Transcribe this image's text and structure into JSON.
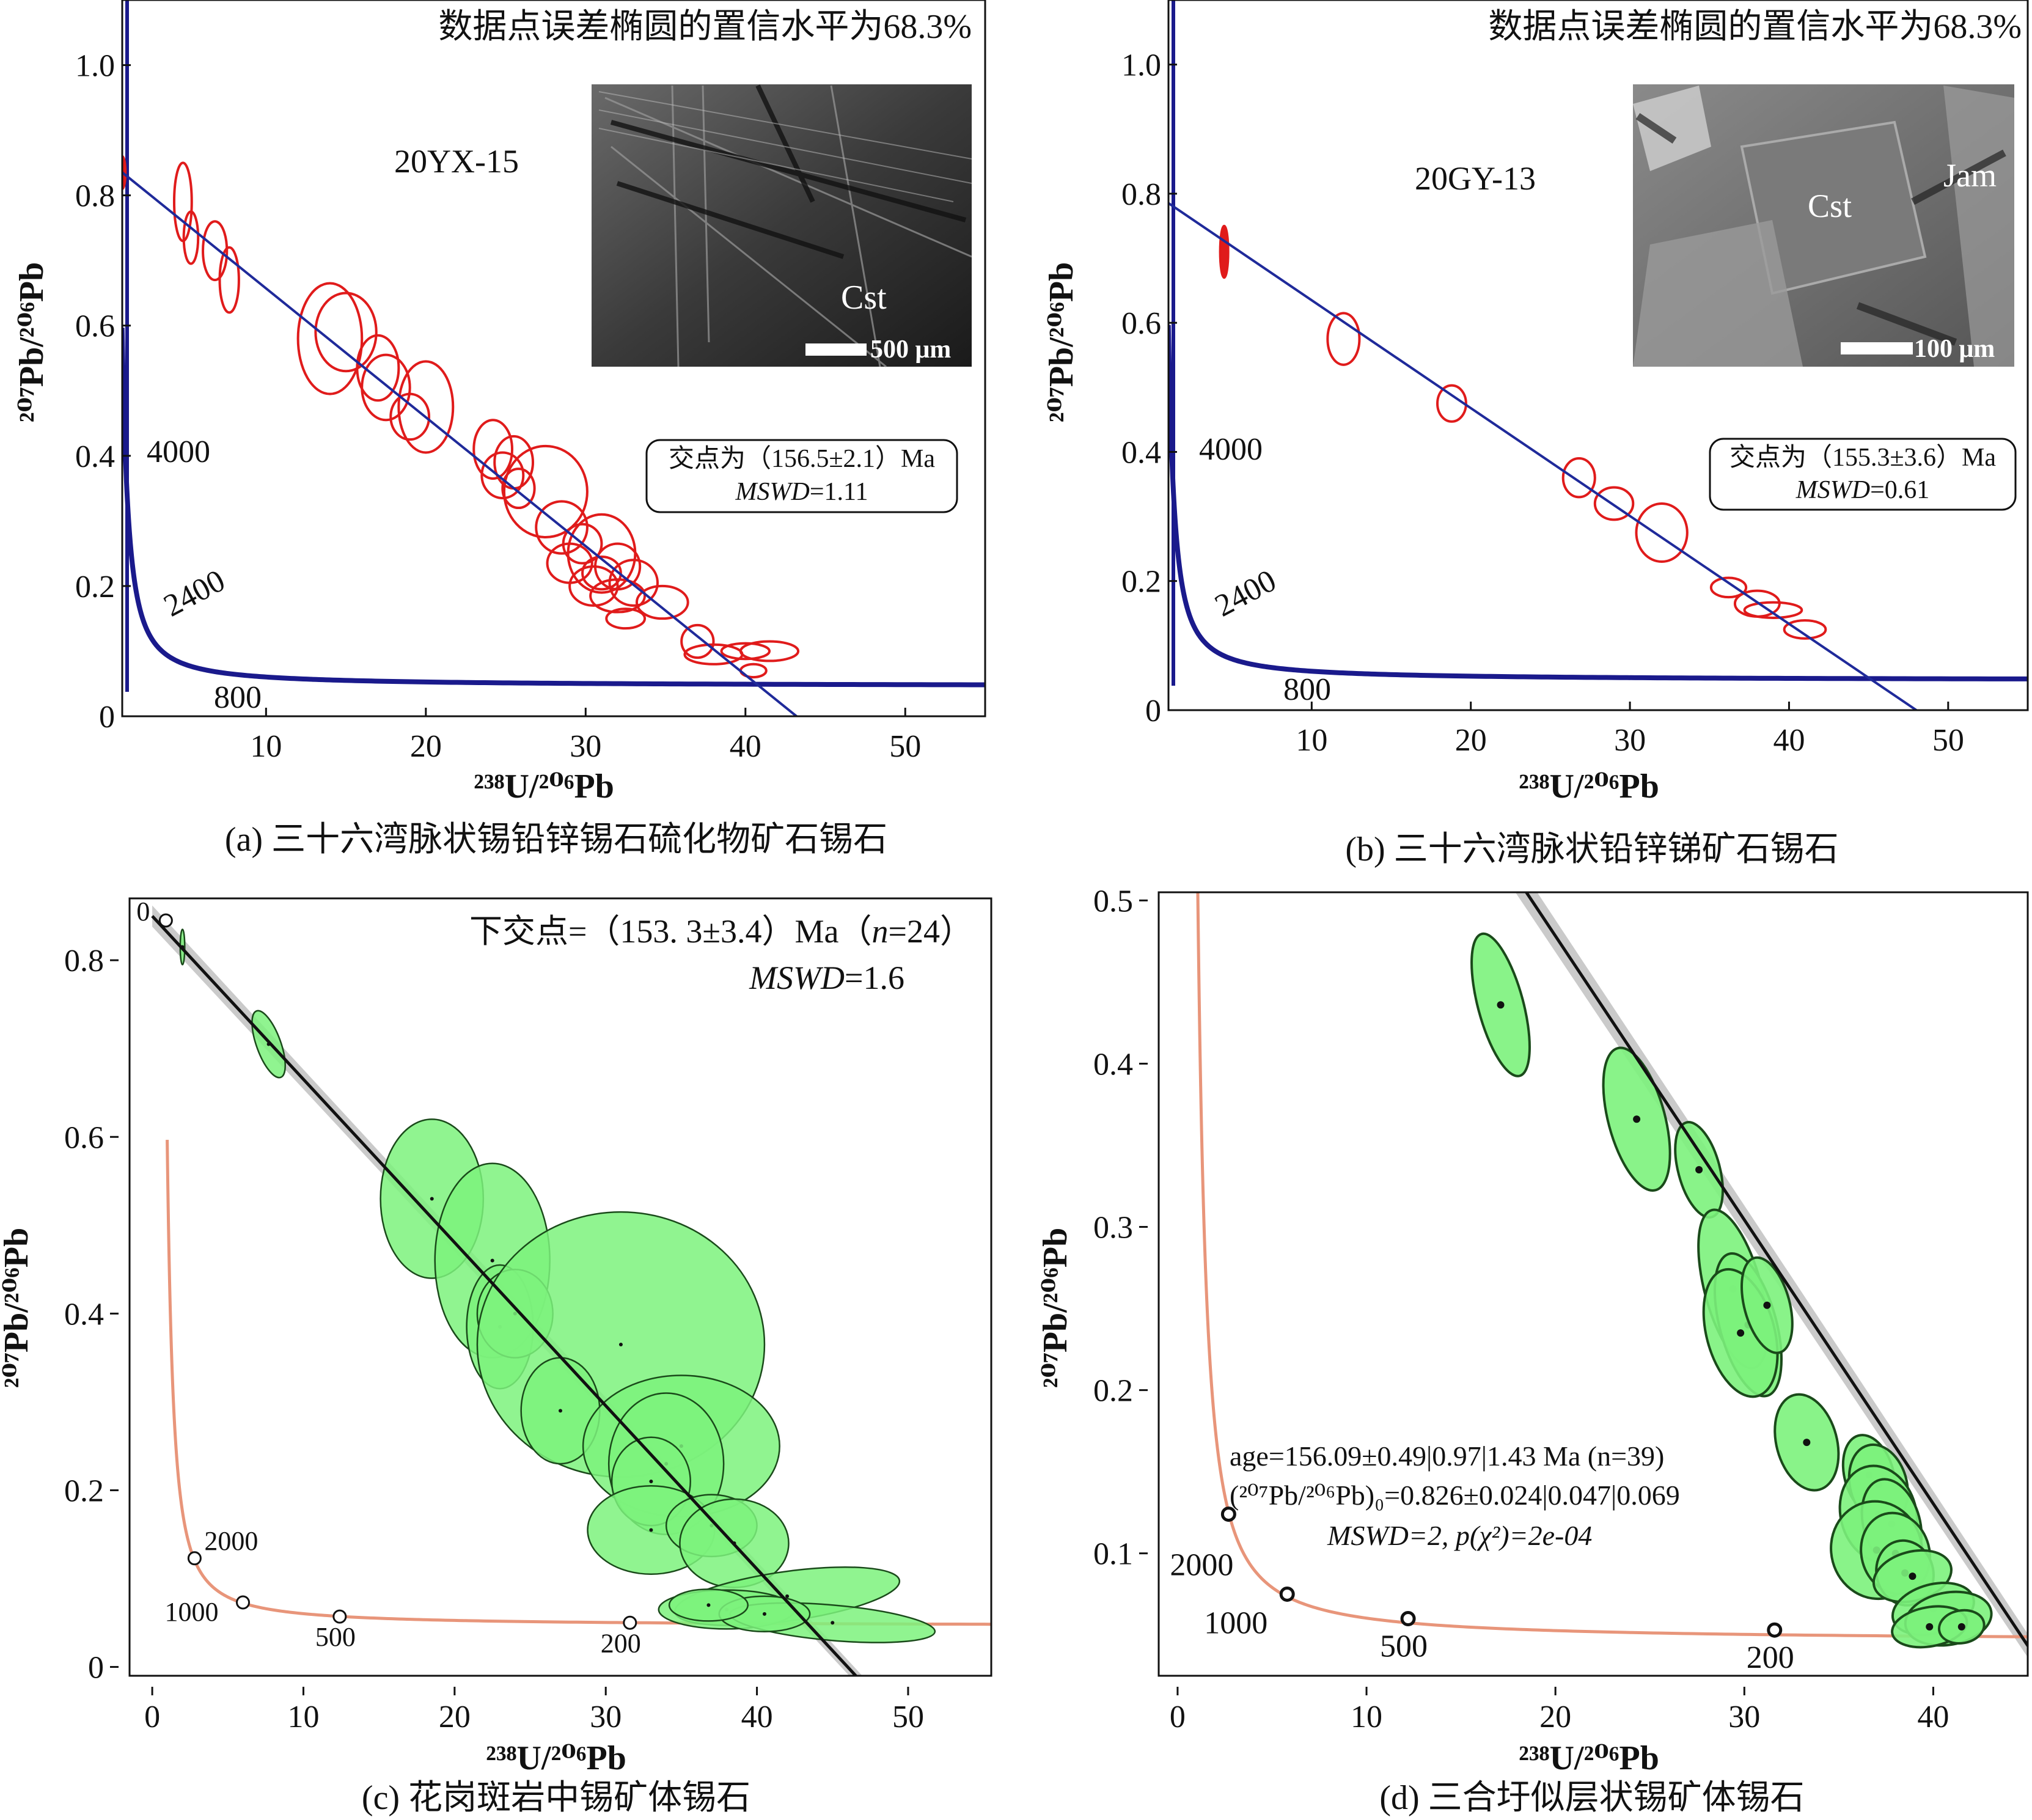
{
  "panels": {
    "a": {
      "caption": "(a) 三十六湾脉状锡铅锌锡石硫化物矿石锡石",
      "confidence": "数据点误差椭圆的置信水平为68.3%",
      "sample": "20YX-15",
      "result_line1": "交点为（156.5±2.1）Ma",
      "result_line2_italic": "MSWD",
      "result_line2_value": "=1.11",
      "inset_label": "Cst",
      "scale_label": "500 μm",
      "concordia_labels": [
        "4000",
        "2400",
        "800"
      ]
    },
    "b": {
      "caption": "(b) 三十六湾脉状铅锌锑矿石锡石",
      "confidence": "数据点误差椭圆的置信水平为68.3%",
      "sample": "20GY-13",
      "result_line1": "交点为（155.3±3.6）Ma",
      "result_line2_italic": "MSWD",
      "result_line2_value": "=0.61",
      "inset_label": "Cst",
      "inset_label2": "Jam",
      "scale_label": "100 μm",
      "concordia_labels": [
        "4000",
        "2400",
        "800"
      ]
    },
    "c": {
      "caption": "(c) 花岗斑岩中锡矿体锡石",
      "result_line1_pre": "下交点=（153. 3±3.4）Ma（",
      "result_line1_n": "n",
      "result_line1_post": "=24）",
      "result_line2_italic": "MSWD",
      "result_line2_value": "=1.6",
      "concordia_labels": [
        "0",
        "2000",
        "1000",
        "500",
        "200"
      ]
    },
    "d": {
      "caption": "(d) 三合圩似层状锡矿体锡石",
      "result_line1": "age=156.09±0.49|0.97|1.43 Ma (n=39)",
      "result_line2": "(²⁰⁷Pb/²⁰⁶Pb)₀=0.826±0.024|0.047|0.069",
      "result_line3": "MSWD=2, p(χ²)=2e-04",
      "concordia_labels": [
        "2000",
        "1000",
        "500",
        "200"
      ]
    }
  },
  "axis_labels": {
    "x": "²³⁸U/²⁰⁶Pb",
    "y": "²⁰⁷Pb/²⁰⁶Pb"
  },
  "colors": {
    "concordia_ab": "#1a1a8c",
    "discordia_ab": "#1f2a9a",
    "ellipse_ab": "#e01b1b",
    "concordia_cd": "#e8957a",
    "ellipse_fill_cd": "#7cf27c",
    "ellipse_stroke_cd": "#1a4a1a",
    "discordia_cd": "#111111"
  },
  "chart_data": [
    {
      "panel": "a",
      "type": "scatter",
      "xlim": [
        1,
        55
      ],
      "ylim": [
        0,
        1.1
      ],
      "xticks": [
        10,
        20,
        30,
        40,
        50
      ],
      "yticks": [
        0,
        0.2,
        0.4,
        0.6,
        0.8,
        1.0
      ],
      "intercept_age_Ma": 156.5,
      "discordia": {
        "y0": 0.855,
        "x_intercept": 43.2
      },
      "ellipses": [
        {
          "x": 1.0,
          "y": 0.835,
          "rx": 0.2,
          "ry": 0.025
        },
        {
          "x": 4.8,
          "y": 0.79,
          "rx": 0.55,
          "ry": 0.06
        },
        {
          "x": 5.3,
          "y": 0.735,
          "rx": 0.45,
          "ry": 0.04
        },
        {
          "x": 6.8,
          "y": 0.715,
          "rx": 0.75,
          "ry": 0.045
        },
        {
          "x": 7.7,
          "y": 0.67,
          "rx": 0.6,
          "ry": 0.05
        },
        {
          "x": 15.0,
          "y": 0.59,
          "rx": 1.9,
          "ry": 0.06
        },
        {
          "x": 14.0,
          "y": 0.58,
          "rx": 2.0,
          "ry": 0.085
        },
        {
          "x": 17.0,
          "y": 0.535,
          "rx": 1.3,
          "ry": 0.05
        },
        {
          "x": 17.5,
          "y": 0.505,
          "rx": 1.5,
          "ry": 0.05
        },
        {
          "x": 20.0,
          "y": 0.475,
          "rx": 1.7,
          "ry": 0.07
        },
        {
          "x": 19.0,
          "y": 0.46,
          "rx": 1.2,
          "ry": 0.035
        },
        {
          "x": 24.2,
          "y": 0.41,
          "rx": 1.2,
          "ry": 0.045
        },
        {
          "x": 25.5,
          "y": 0.39,
          "rx": 1.2,
          "ry": 0.04
        },
        {
          "x": 24.8,
          "y": 0.37,
          "rx": 1.3,
          "ry": 0.035
        },
        {
          "x": 27.5,
          "y": 0.345,
          "rx": 2.6,
          "ry": 0.07
        },
        {
          "x": 25.8,
          "y": 0.35,
          "rx": 1.0,
          "ry": 0.03
        },
        {
          "x": 28.5,
          "y": 0.29,
          "rx": 1.6,
          "ry": 0.04
        },
        {
          "x": 29.8,
          "y": 0.265,
          "rx": 1.2,
          "ry": 0.03
        },
        {
          "x": 31.0,
          "y": 0.25,
          "rx": 2.1,
          "ry": 0.06
        },
        {
          "x": 29.0,
          "y": 0.235,
          "rx": 1.4,
          "ry": 0.03
        },
        {
          "x": 32.0,
          "y": 0.23,
          "rx": 1.4,
          "ry": 0.035
        },
        {
          "x": 31.0,
          "y": 0.22,
          "rx": 1.2,
          "ry": 0.025
        },
        {
          "x": 33.0,
          "y": 0.205,
          "rx": 1.5,
          "ry": 0.035
        },
        {
          "x": 30.5,
          "y": 0.2,
          "rx": 1.5,
          "ry": 0.03
        },
        {
          "x": 32.0,
          "y": 0.185,
          "rx": 1.7,
          "ry": 0.025
        },
        {
          "x": 34.8,
          "y": 0.175,
          "rx": 1.6,
          "ry": 0.025
        },
        {
          "x": 32.5,
          "y": 0.15,
          "rx": 1.2,
          "ry": 0.015
        },
        {
          "x": 37.0,
          "y": 0.115,
          "rx": 1.0,
          "ry": 0.025
        },
        {
          "x": 38.0,
          "y": 0.095,
          "rx": 1.8,
          "ry": 0.015
        },
        {
          "x": 40.0,
          "y": 0.1,
          "rx": 1.5,
          "ry": 0.012
        },
        {
          "x": 41.5,
          "y": 0.1,
          "rx": 1.8,
          "ry": 0.015
        },
        {
          "x": 40.5,
          "y": 0.07,
          "rx": 0.8,
          "ry": 0.01
        }
      ]
    },
    {
      "panel": "b",
      "type": "scatter",
      "xlim": [
        1,
        55
      ],
      "ylim": [
        0,
        1.1
      ],
      "xticks": [
        10,
        20,
        30,
        40,
        50
      ],
      "yticks": [
        0,
        0.2,
        0.4,
        0.6,
        0.8,
        1.0
      ],
      "intercept_age_Ma": 155.3,
      "discordia": {
        "y0": 0.802,
        "x_intercept": 48.0
      },
      "ellipses": [
        {
          "x": 4.5,
          "y": 0.71,
          "rx": 0.25,
          "ry": 0.04
        },
        {
          "x": 12.0,
          "y": 0.575,
          "rx": 1.0,
          "ry": 0.04
        },
        {
          "x": 18.8,
          "y": 0.475,
          "rx": 0.9,
          "ry": 0.028
        },
        {
          "x": 26.8,
          "y": 0.36,
          "rx": 1.0,
          "ry": 0.03
        },
        {
          "x": 29.0,
          "y": 0.32,
          "rx": 1.2,
          "ry": 0.025
        },
        {
          "x": 32.0,
          "y": 0.275,
          "rx": 1.6,
          "ry": 0.045
        },
        {
          "x": 36.2,
          "y": 0.19,
          "rx": 1.1,
          "ry": 0.015
        },
        {
          "x": 38.0,
          "y": 0.165,
          "rx": 1.4,
          "ry": 0.02
        },
        {
          "x": 39.0,
          "y": 0.155,
          "rx": 1.8,
          "ry": 0.012
        },
        {
          "x": 41.0,
          "y": 0.125,
          "rx": 1.3,
          "ry": 0.014
        }
      ]
    },
    {
      "panel": "c",
      "type": "scatter",
      "xlim": [
        -1.5,
        55.5
      ],
      "ylim": [
        -0.01,
        0.87
      ],
      "xticks": [
        0,
        10,
        20,
        30,
        40,
        50
      ],
      "yticks": [
        0,
        0.2,
        0.4,
        0.6,
        0.8
      ],
      "n": 24,
      "intercept_age_Ma": 153.3,
      "discordia": {
        "y0": 0.85,
        "x_intercept": 46.0
      },
      "concordia_points": [
        {
          "label": "0",
          "x": 0.9,
          "y": 0.845
        },
        {
          "label": "2000",
          "x": 2.8,
          "y": 0.123
        },
        {
          "label": "1000",
          "x": 6.0,
          "y": 0.073
        },
        {
          "label": "500",
          "x": 12.4,
          "y": 0.057
        },
        {
          "label": "200",
          "x": 31.6,
          "y": 0.05
        }
      ],
      "ellipses": [
        {
          "x": 2.0,
          "y": 0.815,
          "rx": 0.15,
          "ry": 0.02,
          "rot": 0
        },
        {
          "x": 7.7,
          "y": 0.705,
          "rx": 0.8,
          "ry": 0.04,
          "rot": -20
        },
        {
          "x": 18.5,
          "y": 0.53,
          "rx": 3.4,
          "ry": 0.09,
          "rot": 0
        },
        {
          "x": 22.5,
          "y": 0.46,
          "rx": 3.8,
          "ry": 0.11,
          "rot": 0
        },
        {
          "x": 23.0,
          "y": 0.385,
          "rx": 2.2,
          "ry": 0.07,
          "rot": 0
        },
        {
          "x": 24.0,
          "y": 0.4,
          "rx": 2.5,
          "ry": 0.05,
          "rot": 0
        },
        {
          "x": 31.0,
          "y": 0.365,
          "rx": 9.5,
          "ry": 0.15,
          "rot": 0
        },
        {
          "x": 27.0,
          "y": 0.29,
          "rx": 2.6,
          "ry": 0.06,
          "rot": 0
        },
        {
          "x": 35.0,
          "y": 0.25,
          "rx": 6.5,
          "ry": 0.08,
          "rot": 0
        },
        {
          "x": 34.0,
          "y": 0.23,
          "rx": 3.8,
          "ry": 0.08,
          "rot": 0
        },
        {
          "x": 33.0,
          "y": 0.21,
          "rx": 2.6,
          "ry": 0.05,
          "rot": 0
        },
        {
          "x": 33.0,
          "y": 0.155,
          "rx": 4.2,
          "ry": 0.05,
          "rot": 0
        },
        {
          "x": 37.0,
          "y": 0.16,
          "rx": 3.0,
          "ry": 0.035,
          "rot": 0
        },
        {
          "x": 38.5,
          "y": 0.14,
          "rx": 3.6,
          "ry": 0.05,
          "rot": 0
        },
        {
          "x": 42.0,
          "y": 0.08,
          "rx": 7.5,
          "ry": 0.028,
          "rot": -8
        },
        {
          "x": 38.0,
          "y": 0.065,
          "rx": 4.5,
          "ry": 0.022,
          "rot": 0
        },
        {
          "x": 45.0,
          "y": 0.05,
          "rx": 6.8,
          "ry": 0.02,
          "rot": 5
        },
        {
          "x": 40.5,
          "y": 0.06,
          "rx": 3.0,
          "ry": 0.02,
          "rot": 0
        },
        {
          "x": 36.8,
          "y": 0.07,
          "rx": 2.6,
          "ry": 0.018,
          "rot": 0
        }
      ]
    },
    {
      "panel": "d",
      "type": "scatter",
      "xlim": [
        -1,
        45
      ],
      "ylim": [
        0.025,
        0.505
      ],
      "xticks": [
        0,
        10,
        20,
        30,
        40
      ],
      "yticks": [
        0.1,
        0.2,
        0.3,
        0.4,
        0.5
      ],
      "n": 39,
      "age_Ma": 156.09,
      "MSWD": 2,
      "discordia": {
        "y0": 0.826,
        "x_intercept": 47.5
      },
      "concordia_points": [
        {
          "label": "2000",
          "x": 2.7,
          "y": 0.124
        },
        {
          "label": "1000",
          "x": 5.8,
          "y": 0.075
        },
        {
          "label": "500",
          "x": 12.2,
          "y": 0.06
        },
        {
          "label": "200",
          "x": 31.6,
          "y": 0.053
        }
      ],
      "ellipses": [
        {
          "x": 17.1,
          "y": 0.436,
          "rx": 1.2,
          "ry": 0.045,
          "rot": -15
        },
        {
          "x": 24.3,
          "y": 0.366,
          "rx": 1.5,
          "ry": 0.045,
          "rot": -15
        },
        {
          "x": 27.6,
          "y": 0.335,
          "rx": 1.1,
          "ry": 0.03,
          "rot": -15
        },
        {
          "x": 29.4,
          "y": 0.262,
          "rx": 1.5,
          "ry": 0.05,
          "rot": -15
        },
        {
          "x": 30.2,
          "y": 0.24,
          "rx": 1.5,
          "ry": 0.045,
          "rot": -15
        },
        {
          "x": 29.8,
          "y": 0.235,
          "rx": 1.8,
          "ry": 0.04,
          "rot": -15
        },
        {
          "x": 31.2,
          "y": 0.252,
          "rx": 1.2,
          "ry": 0.03,
          "rot": -15
        },
        {
          "x": 33.3,
          "y": 0.168,
          "rx": 1.6,
          "ry": 0.03,
          "rot": -15
        },
        {
          "x": 36.6,
          "y": 0.148,
          "rx": 1.3,
          "ry": 0.025,
          "rot": -15
        },
        {
          "x": 37.1,
          "y": 0.142,
          "rx": 1.5,
          "ry": 0.025,
          "rot": -15
        },
        {
          "x": 37.1,
          "y": 0.124,
          "rx": 2.0,
          "ry": 0.03,
          "rot": -15
        },
        {
          "x": 37.8,
          "y": 0.118,
          "rx": 1.5,
          "ry": 0.028,
          "rot": -15
        },
        {
          "x": 37.0,
          "y": 0.102,
          "rx": 2.4,
          "ry": 0.03,
          "rot": -15
        },
        {
          "x": 38.0,
          "y": 0.1,
          "rx": 1.8,
          "ry": 0.025,
          "rot": -15
        },
        {
          "x": 38.5,
          "y": 0.088,
          "rx": 1.5,
          "ry": 0.02,
          "rot": -15
        },
        {
          "x": 38.9,
          "y": 0.086,
          "rx": 2.1,
          "ry": 0.015,
          "rot": -15
        },
        {
          "x": 40.0,
          "y": 0.066,
          "rx": 2.2,
          "ry": 0.015,
          "rot": -15
        },
        {
          "x": 40.8,
          "y": 0.06,
          "rx": 2.3,
          "ry": 0.016,
          "rot": -10
        },
        {
          "x": 39.8,
          "y": 0.055,
          "rx": 2.0,
          "ry": 0.012,
          "rot": -10
        },
        {
          "x": 41.5,
          "y": 0.055,
          "rx": 1.2,
          "ry": 0.01,
          "rot": -10
        }
      ]
    }
  ]
}
